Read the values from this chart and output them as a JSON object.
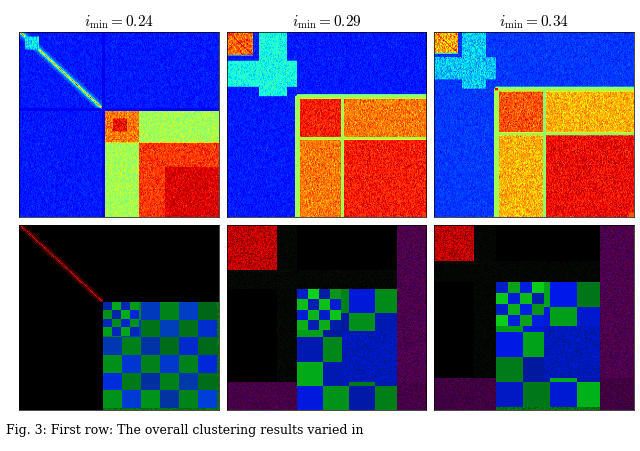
{
  "titles": [
    "$i_{\\mathrm{min}} = 0.24$",
    "$i_{\\mathrm{min}} = 0.29$",
    "$i_{\\mathrm{min}} = 0.34$"
  ],
  "figsize": [
    6.4,
    4.51
  ],
  "dpi": 100,
  "bg_color": "#ffffff",
  "caption": "Fig. 3: First row: The overall clustering results varied in",
  "n": 200,
  "row1_vmin": 0.0,
  "row1_vmax": 1.0
}
